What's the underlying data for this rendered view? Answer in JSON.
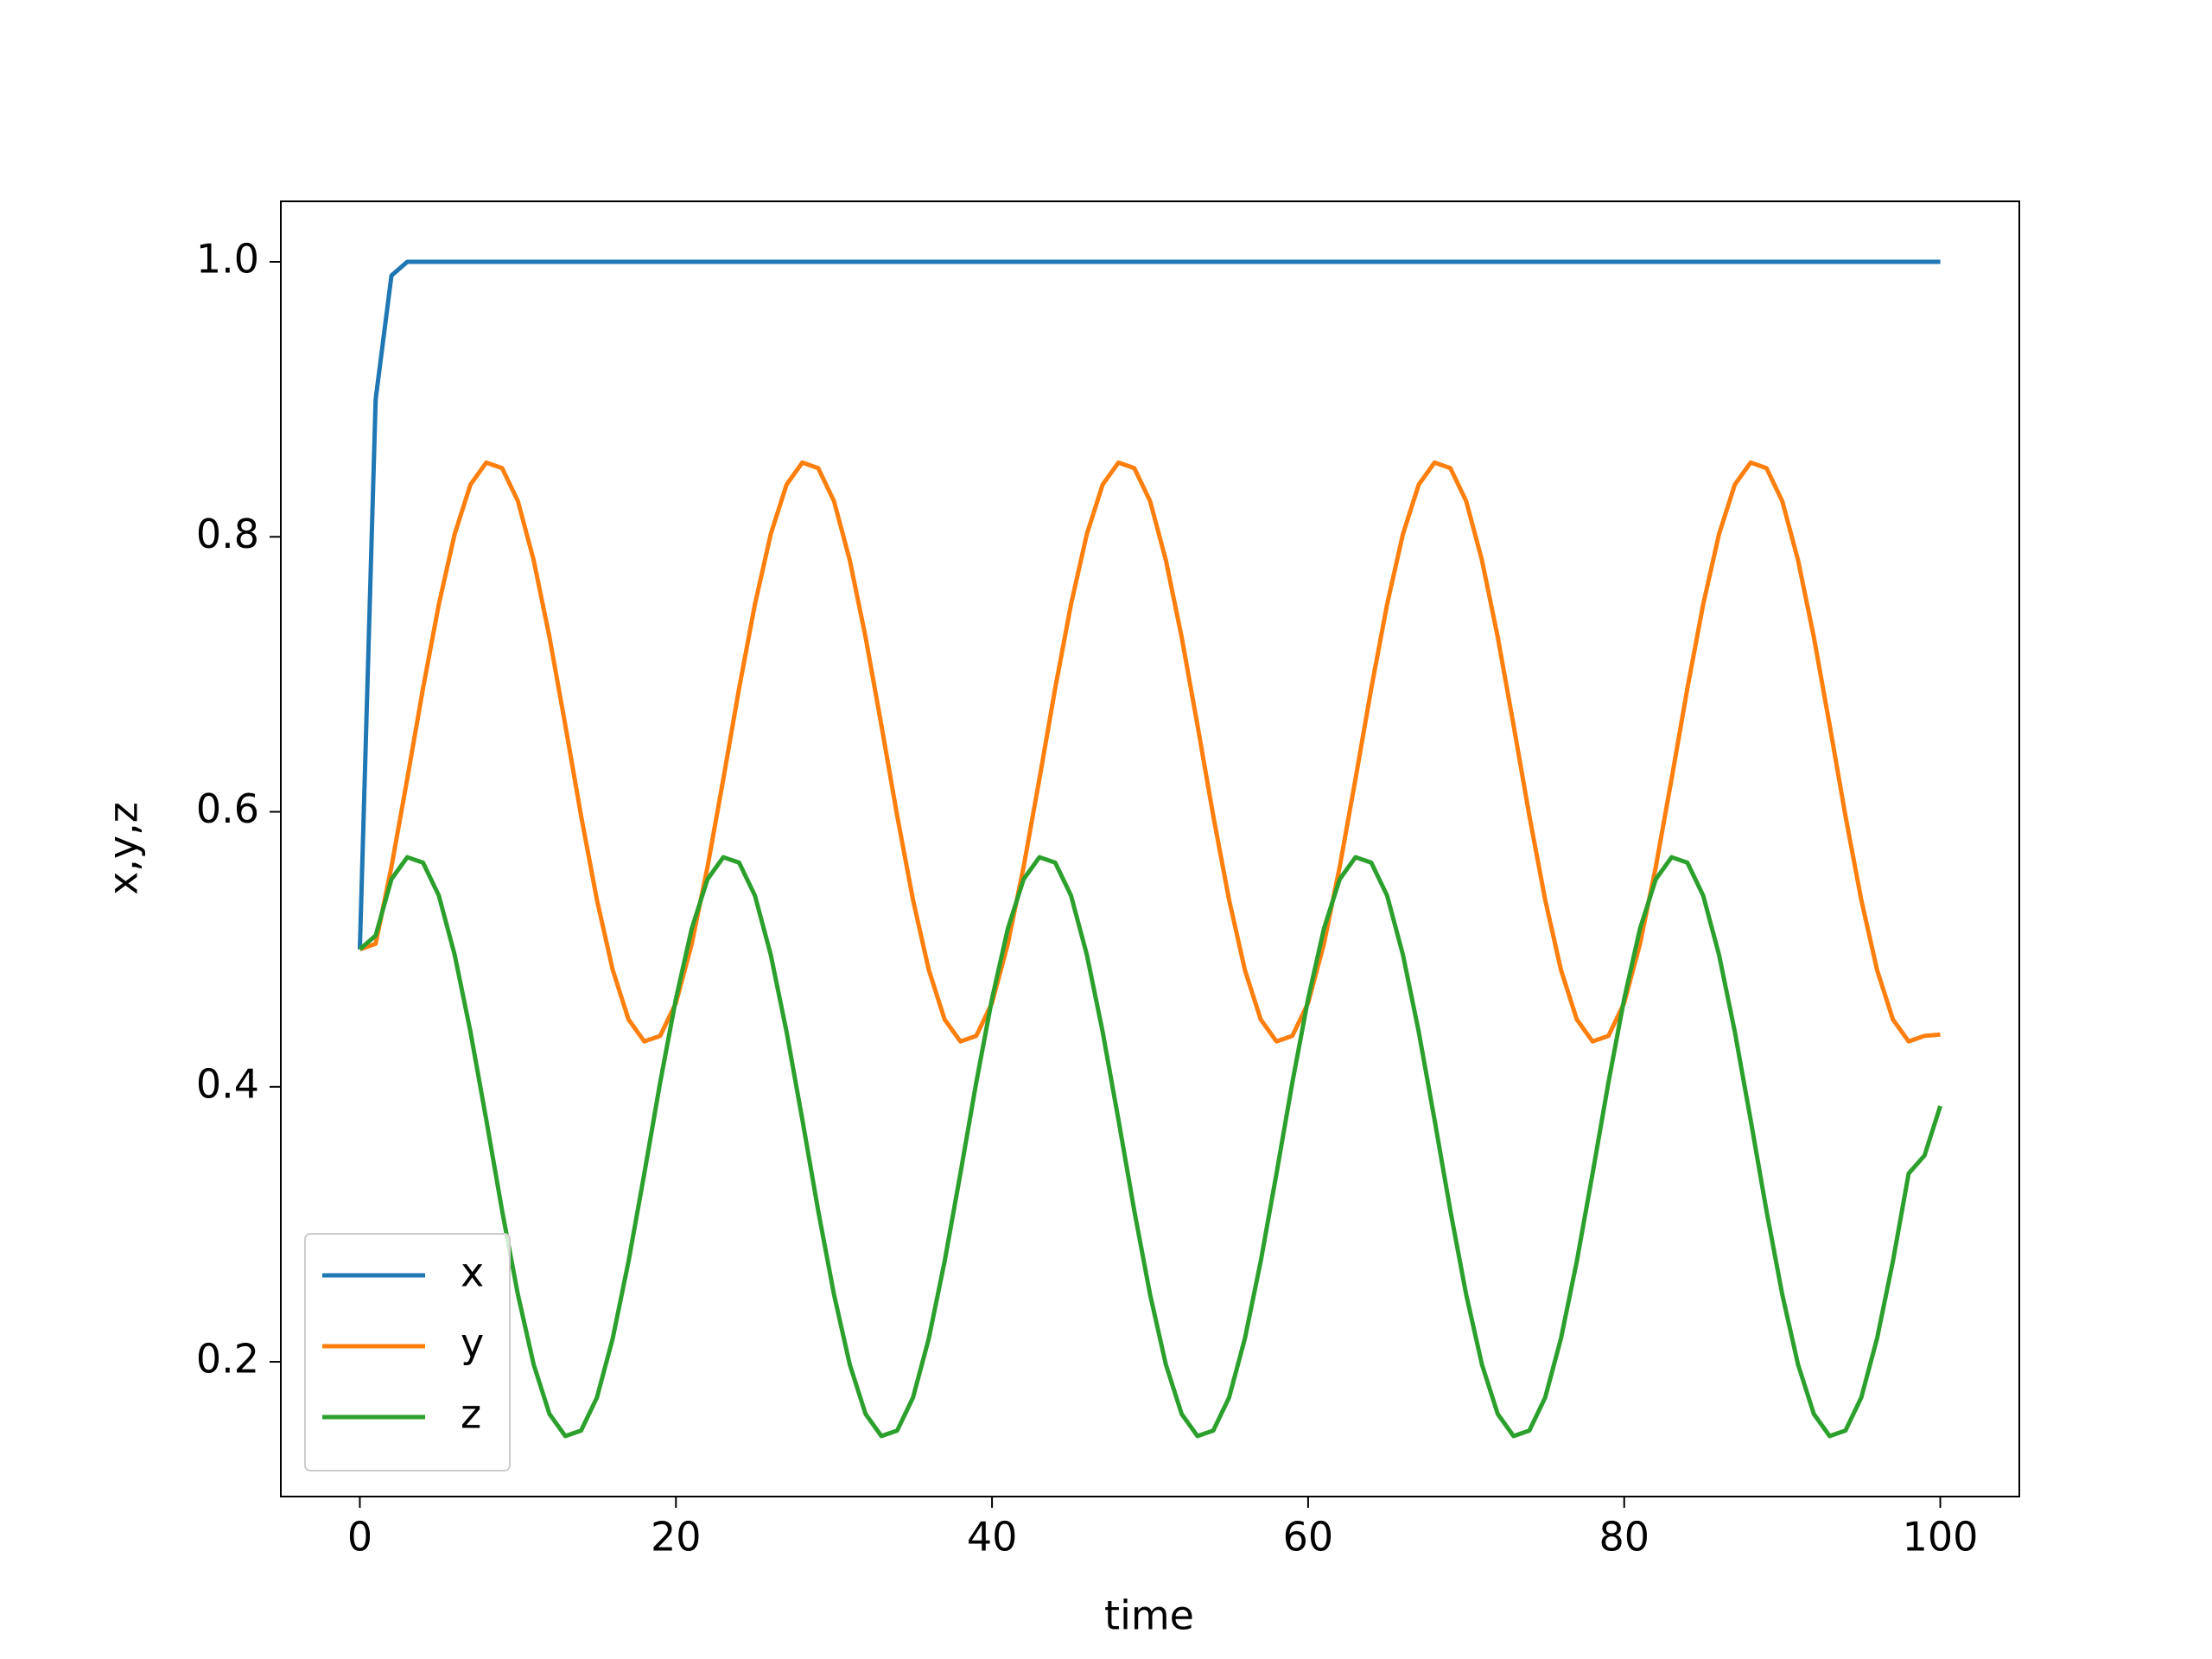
{
  "chart_data": {
    "type": "line",
    "xlabel": "time",
    "ylabel": "x,y,z",
    "x": [
      0,
      1,
      2,
      3,
      4,
      5,
      6,
      7,
      8,
      9,
      10,
      11,
      12,
      13,
      14,
      15,
      16,
      17,
      18,
      19,
      20,
      21,
      22,
      23,
      24,
      25,
      26,
      27,
      28,
      29,
      30,
      31,
      32,
      33,
      34,
      35,
      36,
      37,
      38,
      39,
      40,
      41,
      42,
      43,
      44,
      45,
      46,
      47,
      48,
      49,
      50,
      51,
      52,
      53,
      54,
      55,
      56,
      57,
      58,
      59,
      60,
      61,
      62,
      63,
      64,
      65,
      66,
      67,
      68,
      69,
      70,
      71,
      72,
      73,
      74,
      75,
      76,
      77,
      78,
      79,
      80,
      81,
      82,
      83,
      84,
      85,
      86,
      87,
      88,
      89,
      90,
      91,
      92,
      93,
      94,
      95,
      96,
      97,
      98,
      99,
      100
    ],
    "series": [
      {
        "name": "x",
        "color": "#1f77b4",
        "values": [
          0.5,
          0.9,
          0.99,
          1,
          1,
          1,
          1,
          1,
          1,
          1,
          1,
          1,
          1,
          1,
          1,
          1,
          1,
          1,
          1,
          1,
          1,
          1,
          1,
          1,
          1,
          1,
          1,
          1,
          1,
          1,
          1,
          1,
          1,
          1,
          1,
          1,
          1,
          1,
          1,
          1,
          1,
          1,
          1,
          1,
          1,
          1,
          1,
          1,
          1,
          1,
          1,
          1,
          1,
          1,
          1,
          1,
          1,
          1,
          1,
          1,
          1,
          1,
          1,
          1,
          1,
          1,
          1,
          1,
          1,
          1,
          1,
          1,
          1,
          1,
          1,
          1,
          1,
          1,
          1,
          1,
          1,
          1,
          1,
          1,
          1,
          1,
          1,
          1,
          1,
          1,
          1,
          1,
          1,
          1,
          1,
          1,
          1,
          1,
          1,
          1,
          1
        ]
      },
      {
        "name": "y",
        "color": "#ff7f0e",
        "values": [
          0.5,
          0.504,
          0.56,
          0.624,
          0.69,
          0.751,
          0.802,
          0.838,
          0.854,
          0.85,
          0.826,
          0.783,
          0.727,
          0.663,
          0.597,
          0.536,
          0.485,
          0.449,
          0.433,
          0.437,
          0.461,
          0.504,
          0.56,
          0.624,
          0.69,
          0.751,
          0.802,
          0.838,
          0.854,
          0.85,
          0.826,
          0.783,
          0.727,
          0.663,
          0.597,
          0.536,
          0.485,
          0.449,
          0.433,
          0.437,
          0.461,
          0.504,
          0.56,
          0.624,
          0.69,
          0.751,
          0.802,
          0.838,
          0.854,
          0.85,
          0.826,
          0.783,
          0.727,
          0.663,
          0.597,
          0.536,
          0.485,
          0.449,
          0.433,
          0.437,
          0.461,
          0.504,
          0.56,
          0.624,
          0.69,
          0.751,
          0.802,
          0.838,
          0.854,
          0.85,
          0.826,
          0.783,
          0.727,
          0.663,
          0.597,
          0.536,
          0.485,
          0.449,
          0.433,
          0.437,
          0.461,
          0.504,
          0.56,
          0.624,
          0.69,
          0.751,
          0.802,
          0.838,
          0.854,
          0.85,
          0.826,
          0.783,
          0.727,
          0.663,
          0.597,
          0.536,
          0.485,
          0.449,
          0.433,
          0.437,
          0.438
        ]
      },
      {
        "name": "z",
        "color": "#2ca02c",
        "values": [
          0.5,
          0.51,
          0.551,
          0.567,
          0.563,
          0.539,
          0.496,
          0.44,
          0.376,
          0.31,
          0.249,
          0.198,
          0.162,
          0.146,
          0.15,
          0.174,
          0.217,
          0.273,
          0.337,
          0.403,
          0.464,
          0.515,
          0.551,
          0.567,
          0.563,
          0.539,
          0.496,
          0.44,
          0.376,
          0.31,
          0.249,
          0.198,
          0.162,
          0.146,
          0.15,
          0.174,
          0.217,
          0.273,
          0.337,
          0.403,
          0.464,
          0.515,
          0.551,
          0.567,
          0.563,
          0.539,
          0.496,
          0.44,
          0.376,
          0.31,
          0.249,
          0.198,
          0.162,
          0.146,
          0.15,
          0.174,
          0.217,
          0.273,
          0.337,
          0.403,
          0.464,
          0.515,
          0.551,
          0.567,
          0.563,
          0.539,
          0.496,
          0.44,
          0.376,
          0.31,
          0.249,
          0.198,
          0.162,
          0.146,
          0.15,
          0.174,
          0.217,
          0.273,
          0.337,
          0.403,
          0.464,
          0.515,
          0.551,
          0.567,
          0.563,
          0.539,
          0.496,
          0.44,
          0.376,
          0.31,
          0.249,
          0.198,
          0.162,
          0.146,
          0.15,
          0.174,
          0.217,
          0.273,
          0.337,
          0.35,
          0.386
        ]
      }
    ],
    "xlim": [
      -5,
      105
    ],
    "ylim": [
      0.102,
      1.044
    ],
    "xticks": [
      0,
      20,
      40,
      60,
      80,
      100
    ],
    "yticks": [
      0.2,
      0.4,
      0.6,
      0.8,
      {
        "value": 1,
        "label": "1.0"
      }
    ],
    "legend": "lower left"
  }
}
